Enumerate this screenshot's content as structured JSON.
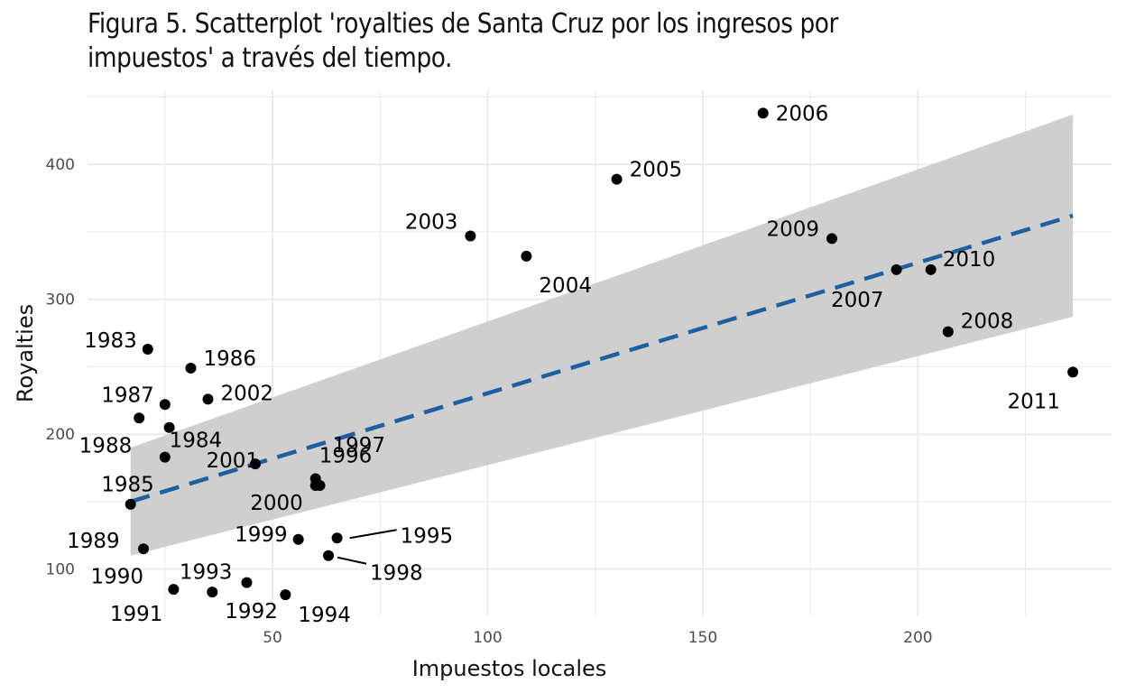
{
  "chart_data": {
    "type": "scatter",
    "title": "Figura 5. Scatterplot 'royalties de Santa Cruz por los ingresos por impuestos' a través del tiempo.",
    "xlabel": "Impuestos locales",
    "ylabel": "Royalties",
    "xlim": [
      7,
      245
    ],
    "ylim": [
      65,
      455
    ],
    "xticks": [
      50,
      100,
      150,
      200
    ],
    "yticks": [
      100,
      200,
      300,
      400
    ],
    "grid": true,
    "legend": "none",
    "points": [
      {
        "label": "1983",
        "x": 21,
        "y": 263
      },
      {
        "label": "1984",
        "x": 26,
        "y": 205
      },
      {
        "label": "1985",
        "x": 25,
        "y": 183
      },
      {
        "label": "1986",
        "x": 31,
        "y": 249
      },
      {
        "label": "1987",
        "x": 25,
        "y": 222
      },
      {
        "label": "1988",
        "x": 19,
        "y": 212
      },
      {
        "label": "1989",
        "x": 17,
        "y": 148
      },
      {
        "label": "1990",
        "x": 20,
        "y": 115
      },
      {
        "label": "1991",
        "x": 27,
        "y": 85
      },
      {
        "label": "1992",
        "x": 36,
        "y": 83
      },
      {
        "label": "1993",
        "x": 44,
        "y": 90
      },
      {
        "label": "1994",
        "x": 53,
        "y": 81
      },
      {
        "label": "1995",
        "x": 65,
        "y": 123
      },
      {
        "label": "1996",
        "x": 60,
        "y": 167
      },
      {
        "label": "1997",
        "x": 61,
        "y": 162
      },
      {
        "label": "1998",
        "x": 63,
        "y": 110
      },
      {
        "label": "1999",
        "x": 56,
        "y": 122
      },
      {
        "label": "2000",
        "x": 60,
        "y": 162
      },
      {
        "label": "2001",
        "x": 46,
        "y": 178
      },
      {
        "label": "2002",
        "x": 35,
        "y": 226
      },
      {
        "label": "2003",
        "x": 96,
        "y": 347
      },
      {
        "label": "2004",
        "x": 109,
        "y": 332
      },
      {
        "label": "2005",
        "x": 130,
        "y": 389
      },
      {
        "label": "2006",
        "x": 164,
        "y": 438
      },
      {
        "label": "2007",
        "x": 195,
        "y": 322
      },
      {
        "label": "2008",
        "x": 207,
        "y": 276
      },
      {
        "label": "2009",
        "x": 180,
        "y": 345
      },
      {
        "label": "2010",
        "x": 203,
        "y": 322
      },
      {
        "label": "2011",
        "x": 236,
        "y": 246
      }
    ],
    "fit": {
      "type": "linear",
      "x": [
        17,
        236
      ],
      "y": [
        150,
        362
      ]
    },
    "confidence_band": {
      "x": [
        17,
        236
      ],
      "lower": [
        110,
        287
      ],
      "upper": [
        190,
        437
      ]
    },
    "colors": {
      "points": "#000000",
      "fit_line": "#1f5fa0",
      "band": "#cccccc"
    }
  }
}
